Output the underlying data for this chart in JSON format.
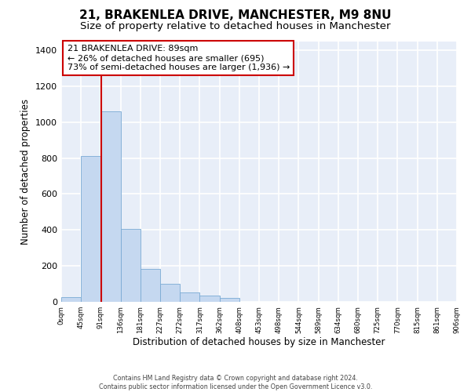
{
  "title1": "21, BRAKENLEA DRIVE, MANCHESTER, M9 8NU",
  "title2": "Size of property relative to detached houses in Manchester",
  "xlabel": "Distribution of detached houses by size in Manchester",
  "ylabel": "Number of detached properties",
  "footer1": "Contains HM Land Registry data © Crown copyright and database right 2024.",
  "footer2": "Contains public sector information licensed under the Open Government Licence v3.0.",
  "annotation_line1": "21 BRAKENLEA DRIVE: 89sqm",
  "annotation_line2": "← 26% of detached houses are smaller (695)",
  "annotation_line3": "73% of semi-detached houses are larger (1,936) →",
  "bar_values": [
    25,
    810,
    1060,
    405,
    185,
    100,
    52,
    35,
    20,
    0,
    0,
    0,
    0,
    0,
    0,
    0,
    0,
    0,
    0,
    0
  ],
  "bar_color": "#c5d8f0",
  "bar_edge_color": "#7aaad4",
  "bin_labels": [
    "0sqm",
    "45sqm",
    "91sqm",
    "136sqm",
    "181sqm",
    "227sqm",
    "272sqm",
    "317sqm",
    "362sqm",
    "408sqm",
    "453sqm",
    "498sqm",
    "544sqm",
    "589sqm",
    "634sqm",
    "680sqm",
    "725sqm",
    "770sqm",
    "815sqm",
    "861sqm",
    "906sqm"
  ],
  "ylim": [
    0,
    1450
  ],
  "yticks": [
    0,
    200,
    400,
    600,
    800,
    1000,
    1200,
    1400
  ],
  "vline_x": 91,
  "vline_color": "#cc0000",
  "annotation_box_color": "#cc0000",
  "bg_color": "#e8eef8",
  "grid_color": "#ffffff",
  "title1_fontsize": 11,
  "title2_fontsize": 9.5,
  "bin_width": 45,
  "n_bins": 20
}
